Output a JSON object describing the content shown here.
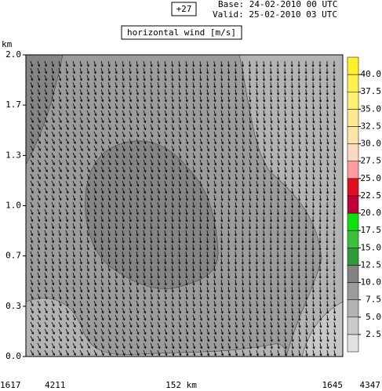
{
  "header": {
    "step": "+27",
    "base": "Base: 24-02-2010  00 UTC",
    "valid": "Valid: 25-02-2010  03 UTC",
    "title": "horizontal wind [m/s]"
  },
  "chart_data": {
    "type": "cross-section",
    "y_label": "km",
    "ylim": [
      0,
      2
    ],
    "yticks": [
      {
        "value": 0,
        "label": "0.0"
      },
      {
        "value": 0.333,
        "label": "0.3"
      },
      {
        "value": 0.667,
        "label": "0.7"
      },
      {
        "value": 1,
        "label": "1.0"
      },
      {
        "value": 1.333,
        "label": "1.3"
      },
      {
        "value": 1.667,
        "label": "1.7"
      },
      {
        "value": 2,
        "label": "2.0"
      }
    ],
    "x_labels": [
      "1617",
      "4211",
      "152 km",
      "1645",
      "4347"
    ],
    "colorbar": {
      "levels": [
        0,
        2.5,
        5,
        7.5,
        10,
        12.5,
        15,
        17.5,
        20,
        22.5,
        25,
        27.5,
        30,
        32.5,
        35,
        37.5,
        40,
        42.5
      ],
      "colors": [
        "#e2e2e2",
        "#cbcbcb",
        "#b3b3b3",
        "#9b9b9b",
        "#838383",
        "#2f9a3a",
        "#3cbf3c",
        "#10e010",
        "#c0003a",
        "#e01020",
        "#ff9aa0",
        "#ffd8c0",
        "#ffe4a8",
        "#ffe890",
        "#fff070",
        "#fff050",
        "#fff028"
      ],
      "ticks": [
        2.5,
        {
          "value": 5,
          "label": "5.0"
        },
        7.5,
        {
          "value": 10,
          "label": "10.0"
        },
        12.5,
        {
          "value": 15,
          "label": "15.0"
        },
        17.5,
        {
          "value": 20,
          "label": "20.0"
        },
        22.5,
        {
          "value": 25,
          "label": "25.0"
        },
        27.5,
        {
          "value": 30,
          "label": "30.0"
        },
        32.5,
        {
          "value": 35,
          "label": "35.0"
        },
        37.5,
        {
          "value": 40,
          "label": "40.0"
        }
      ]
    }
  }
}
